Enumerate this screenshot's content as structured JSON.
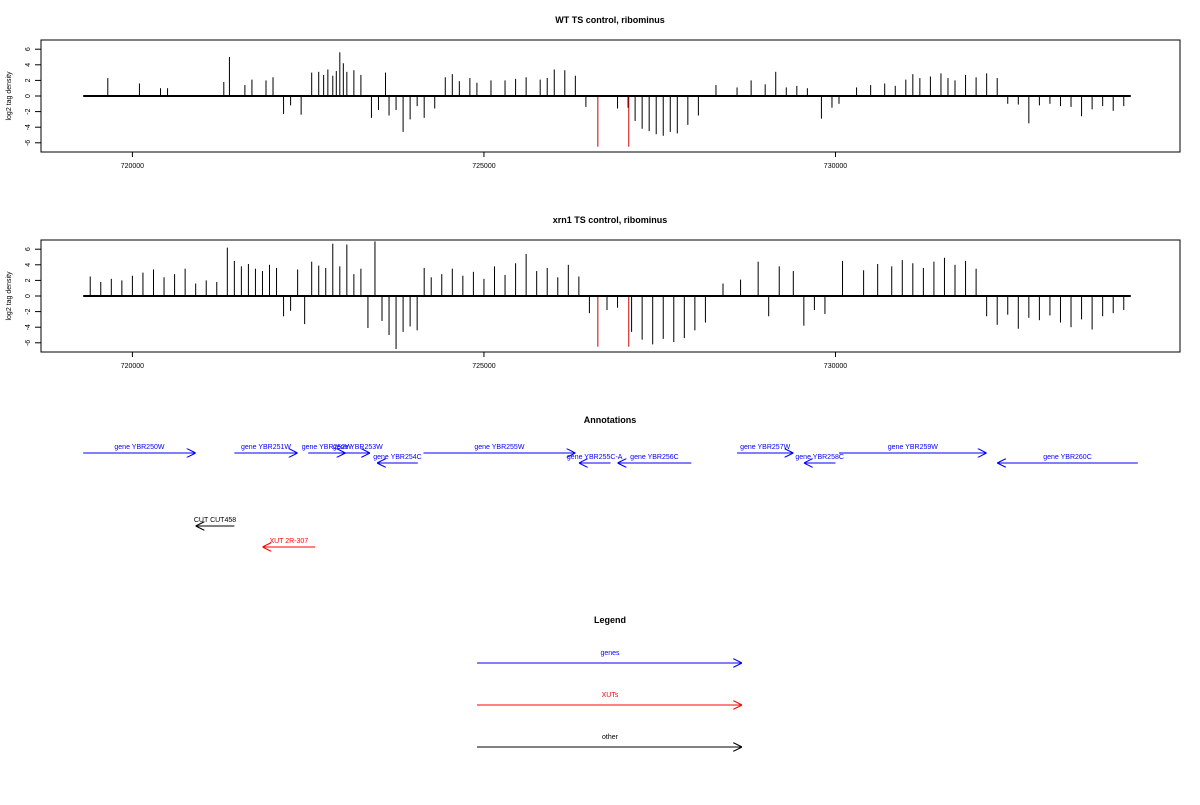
{
  "chart_data": [
    {
      "type": "bar",
      "title": "WT TS control, ribominus",
      "ylabel": "log2 tag density",
      "xlabel": "",
      "xlim": [
        718700,
        734900
      ],
      "ylim": [
        -6.6,
        7
      ],
      "y_ticks": [
        -6,
        -4,
        -2,
        0,
        2,
        4,
        6
      ],
      "x_ticks": [
        720000,
        725000,
        730000
      ],
      "x_tick_labels": [
        "720000",
        "725000",
        "730000"
      ],
      "baseline": {
        "from": 719300,
        "to": 734200
      },
      "colors": {
        "default": "#000000",
        "highlight": "#cc0000"
      },
      "series": [
        {
          "color": "#000000",
          "x": [
            719650,
            720100,
            720400,
            720500,
            721300,
            721380,
            721600,
            721700,
            721900,
            722000,
            722150,
            722250,
            722400,
            722550,
            722650,
            722720,
            722780,
            722850,
            722900,
            722950,
            723000,
            723050,
            723150,
            723250,
            723400,
            723500,
            723600,
            723650,
            723750,
            723850,
            723950,
            724050,
            724150,
            724300,
            724450,
            724550,
            724650,
            724800,
            724900,
            725100,
            725300,
            725450,
            725600,
            725800,
            725900,
            726000,
            726150,
            726300,
            726450,
            726900,
            727050,
            727150,
            727250,
            727350,
            727450,
            727550,
            727650,
            727750,
            727900,
            728050,
            728300,
            728600,
            728800,
            729000,
            729150,
            729300,
            729450,
            729600,
            729800,
            729950,
            730050,
            730300,
            730500,
            730700,
            730850,
            731000,
            731100,
            731200,
            731350,
            731500,
            731600,
            731700,
            731850,
            732000,
            732150,
            732300,
            732450,
            732600,
            732750,
            732900,
            733050,
            733200,
            733350,
            733500,
            733650,
            733800,
            733950,
            734100
          ],
          "values": [
            2.3,
            1.6,
            1.0,
            1.0,
            1.8,
            5.0,
            1.4,
            2.1,
            2.0,
            2.4,
            -2.3,
            -1.2,
            -2.4,
            3.0,
            3.1,
            2.7,
            3.4,
            2.6,
            3.2,
            5.6,
            4.2,
            3.1,
            3.3,
            2.7,
            -2.8,
            -1.8,
            3.0,
            -2.5,
            -1.8,
            -4.6,
            -3.0,
            -1.3,
            -2.8,
            -1.6,
            2.4,
            2.8,
            1.9,
            2.3,
            1.7,
            2.0,
            2.0,
            2.2,
            2.4,
            2.1,
            2.3,
            3.4,
            3.3,
            2.6,
            -1.4,
            -1.6,
            -1.5,
            -3.2,
            -4.2,
            -4.5,
            -4.9,
            -5.1,
            -4.6,
            -4.8,
            -3.7,
            -2.5,
            1.4,
            1.1,
            2.0,
            1.5,
            3.1,
            1.1,
            1.3,
            1.0,
            -2.9,
            -1.5,
            -1.0,
            1.1,
            1.4,
            1.6,
            1.3,
            2.1,
            2.8,
            2.3,
            2.5,
            2.9,
            2.3,
            2.0,
            2.7,
            2.4,
            2.9,
            2.3,
            -1.0,
            -1.1,
            -3.5,
            -1.2,
            -1.0,
            -1.3,
            -1.4,
            -2.6,
            -1.7,
            -1.3,
            -1.9,
            -1.3
          ]
        },
        {
          "color": "#cc0000",
          "x": [
            726620,
            727060
          ],
          "values": [
            -6.5,
            -6.5
          ]
        }
      ]
    },
    {
      "type": "bar",
      "title": "xrn1 TS control, ribominus",
      "ylabel": "log2 tag density",
      "xlabel": "",
      "xlim": [
        718700,
        734900
      ],
      "ylim": [
        -6.6,
        7
      ],
      "y_ticks": [
        -6,
        -4,
        -2,
        0,
        2,
        4,
        6
      ],
      "x_ticks": [
        720000,
        725000,
        730000
      ],
      "x_tick_labels": [
        "720000",
        "725000",
        "730000"
      ],
      "baseline": {
        "from": 719300,
        "to": 734200
      },
      "colors": {
        "default": "#000000",
        "highlight": "#cc0000"
      },
      "series": [
        {
          "color": "#000000",
          "x": [
            719400,
            719550,
            719700,
            719850,
            720000,
            720150,
            720300,
            720450,
            720600,
            720750,
            720900,
            721050,
            721200,
            721350,
            721450,
            721550,
            721650,
            721750,
            721850,
            721950,
            722050,
            722150,
            722250,
            722350,
            722450,
            722550,
            722650,
            722750,
            722850,
            722950,
            723050,
            723150,
            723250,
            723350,
            723450,
            723550,
            723650,
            723750,
            723850,
            723950,
            724050,
            724150,
            724250,
            724400,
            724550,
            724700,
            724850,
            725000,
            725150,
            725300,
            725450,
            725600,
            725750,
            725900,
            726050,
            726200,
            726350,
            726500,
            726750,
            726900,
            727100,
            727250,
            727400,
            727550,
            727700,
            727850,
            728000,
            728150,
            728400,
            728650,
            728900,
            729050,
            729200,
            729400,
            729550,
            729700,
            729850,
            730100,
            730400,
            730600,
            730800,
            730950,
            731100,
            731250,
            731400,
            731550,
            731700,
            731850,
            732000,
            732150,
            732300,
            732450,
            732600,
            732750,
            732900,
            733050,
            733200,
            733350,
            733500,
            733650,
            733800,
            733950,
            734100
          ],
          "values": [
            2.5,
            1.8,
            2.2,
            2.0,
            2.6,
            3.0,
            3.4,
            2.4,
            2.8,
            3.5,
            1.6,
            2.0,
            1.8,
            6.2,
            4.5,
            3.8,
            4.1,
            3.5,
            3.2,
            4.0,
            3.6,
            -2.6,
            -1.9,
            3.4,
            -3.6,
            4.4,
            3.9,
            3.6,
            6.7,
            3.8,
            6.6,
            2.8,
            3.5,
            -4.1,
            7.0,
            -3.2,
            -5.0,
            -6.8,
            -4.6,
            -3.9,
            -4.4,
            3.6,
            2.4,
            2.8,
            3.5,
            2.6,
            3.1,
            2.2,
            3.8,
            2.7,
            4.2,
            5.4,
            3.2,
            3.6,
            2.4,
            4.0,
            2.5,
            -2.2,
            -1.8,
            -1.5,
            -4.6,
            -5.6,
            -6.2,
            -5.5,
            -5.9,
            -5.4,
            -4.4,
            -3.4,
            1.6,
            2.1,
            4.4,
            -2.6,
            3.8,
            3.2,
            -3.8,
            -1.8,
            -2.3,
            4.5,
            3.3,
            4.1,
            3.8,
            4.6,
            4.2,
            3.6,
            4.4,
            4.9,
            4.0,
            4.5,
            3.5,
            -2.6,
            -3.7,
            -2.4,
            -4.2,
            -2.8,
            -3.1,
            -2.5,
            -3.4,
            -4.0,
            -3.0,
            -4.3,
            -2.6,
            -2.2,
            -1.8
          ]
        },
        {
          "color": "#cc0000",
          "x": [
            726620,
            727060
          ],
          "values": [
            -6.5,
            -6.5
          ]
        }
      ]
    }
  ],
  "annotations": {
    "title": "Annotations",
    "colors": {
      "genes": "#0000ff",
      "XUTs": "#ff0000",
      "other": "#000000"
    },
    "features": [
      {
        "label": "gene YBR250W",
        "start": 719300,
        "end": 720900,
        "strand": "+",
        "row": 0,
        "category": "genes"
      },
      {
        "label": "gene YBR251W",
        "start": 721450,
        "end": 722350,
        "strand": "+",
        "row": 0,
        "category": "genes"
      },
      {
        "label": "gene YBR252W",
        "start": 722500,
        "end": 723030,
        "strand": "+",
        "row": 0,
        "category": "genes"
      },
      {
        "label": "gene YBR253W",
        "start": 723030,
        "end": 723380,
        "strand": "+",
        "row": 0,
        "category": "genes"
      },
      {
        "label": "gene YBR254C",
        "start": 723480,
        "end": 724060,
        "strand": "-",
        "row": 1,
        "category": "genes"
      },
      {
        "label": "gene YBR255W",
        "start": 724140,
        "end": 726300,
        "strand": "+",
        "row": 0,
        "category": "genes"
      },
      {
        "label": "gene YBR255C-A",
        "start": 726350,
        "end": 726800,
        "strand": "-",
        "row": 1,
        "category": "genes"
      },
      {
        "label": "gene YBR256C",
        "start": 726900,
        "end": 727950,
        "strand": "-",
        "row": 1,
        "category": "genes"
      },
      {
        "label": "gene YBR257W",
        "start": 728600,
        "end": 729400,
        "strand": "+",
        "row": 0,
        "category": "genes"
      },
      {
        "label": "gene YBR258C",
        "start": 729550,
        "end": 730000,
        "strand": "-",
        "row": 1,
        "category": "genes"
      },
      {
        "label": "gene YBR259W",
        "start": 730050,
        "end": 732150,
        "strand": "+",
        "row": 0,
        "category": "genes"
      },
      {
        "label": "gene YBR260C",
        "start": 732300,
        "end": 734300,
        "strand": "-",
        "row": 1,
        "category": "genes"
      },
      {
        "label": "CUT CUT458",
        "start": 720900,
        "end": 721450,
        "strand": "-",
        "row": 2,
        "category": "other"
      },
      {
        "label": "XUT 2R-307",
        "start": 721850,
        "end": 722600,
        "strand": "-",
        "row": 3,
        "category": "XUTs"
      }
    ]
  },
  "legend": {
    "title": "Legend",
    "items": [
      {
        "label": "genes",
        "color": "#0000ff"
      },
      {
        "label": "XUTs",
        "color": "#ff0000"
      },
      {
        "label": "other",
        "color": "#000000"
      }
    ]
  }
}
